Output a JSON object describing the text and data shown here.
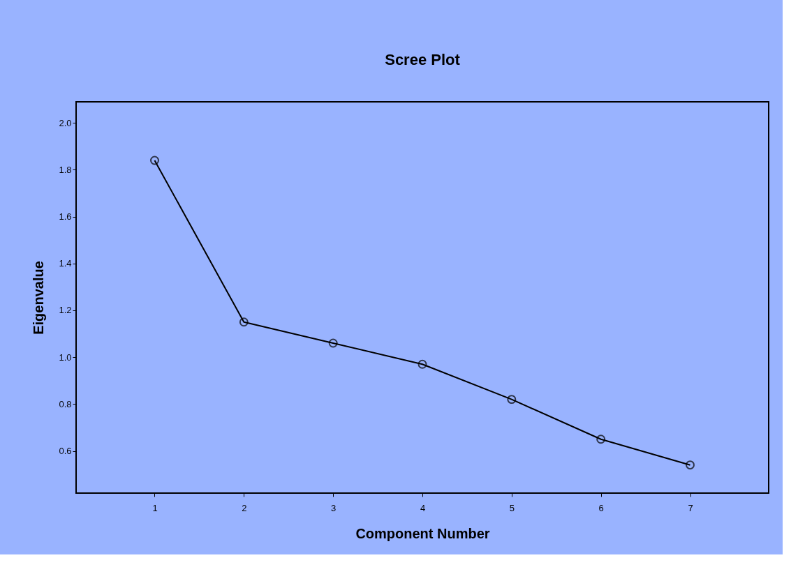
{
  "chart_data": {
    "type": "line",
    "title": "Scree Plot",
    "xlabel": "Component Number",
    "ylabel": "Eigenvalue",
    "x": [
      1,
      2,
      3,
      4,
      5,
      6,
      7
    ],
    "series": [
      {
        "color": "#000000",
        "values": [
          1.84,
          1.15,
          1.06,
          0.97,
          0.82,
          0.65,
          0.54
        ]
      }
    ],
    "xlim": [
      0.12,
      7.88
    ],
    "xticks": [
      1,
      2,
      3,
      4,
      5,
      6,
      7
    ],
    "ylim": [
      0.42,
      2.09
    ],
    "yticks": [
      0.6,
      0.8,
      {
        "value": 1,
        "label": "1.0"
      },
      1.2,
      1.4,
      1.6,
      1.8,
      {
        "value": 2,
        "label": "2.0"
      }
    ],
    "grid": false,
    "marker": "circle",
    "line_style": "solid"
  }
}
